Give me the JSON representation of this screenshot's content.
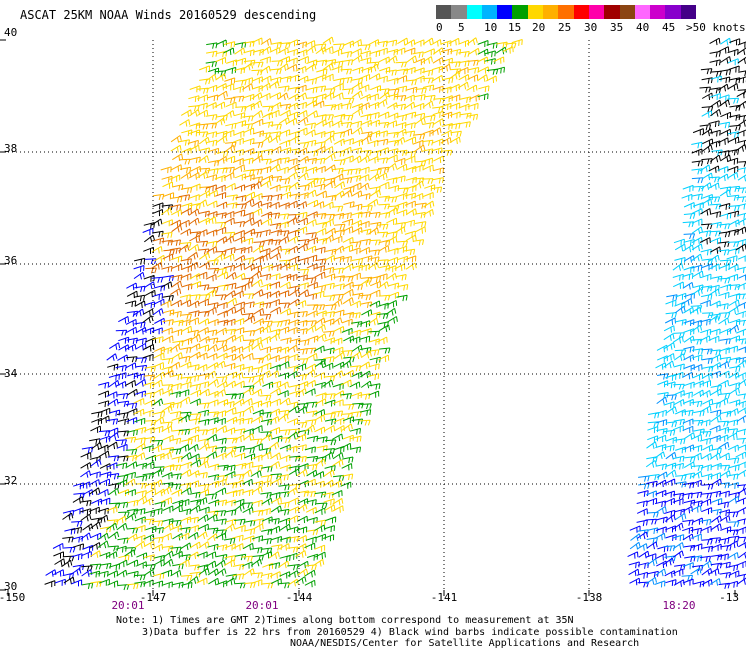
{
  "title": "ASCAT 25KM NOAA Winds 20160529 descending",
  "colorbar": {
    "unit_label": ">50 knots",
    "ticks": [
      "0",
      "5",
      "10",
      "15",
      "20",
      "25",
      "30",
      "35",
      "40",
      "45"
    ],
    "colors": [
      "#555555",
      "#888888",
      "#00ffff",
      "#00b4ff",
      "#0000ff",
      "#00a000",
      "#ffd800",
      "#ffb000",
      "#ff7000",
      "#ff0000",
      "#ff00aa",
      "#a00000",
      "#8b4513",
      "#ff66ff",
      "#cc00cc",
      "#8800cc",
      "#440088"
    ]
  },
  "map": {
    "lat_labels": [
      "40",
      "38",
      "36",
      "34",
      "32",
      "30"
    ],
    "lon_labels": [
      "-150",
      "-147",
      "-144",
      "-141",
      "-138",
      "-13"
    ],
    "time_labels": [
      "20:01",
      "20:01",
      "18:20"
    ],
    "swath_palette": {
      "blue": "#0000ff",
      "green": "#00a000",
      "yellow": "#ffd800",
      "orange": "#ffb000",
      "dark_orange": "#e06a00",
      "black": "#000000",
      "cyan": "#00d0ff",
      "light_blue": "#0090ff"
    }
  },
  "notes": {
    "line1": "Note: 1) Times are GMT 2)Times along bottom correspond to measurement at 35N",
    "line2": "3)Data buffer is 22 hrs from 20160529 4) Black wind barbs indicate possible contamination",
    "line3": "NOAA/NESDIS/Center for Satellite Applications and Research"
  }
}
